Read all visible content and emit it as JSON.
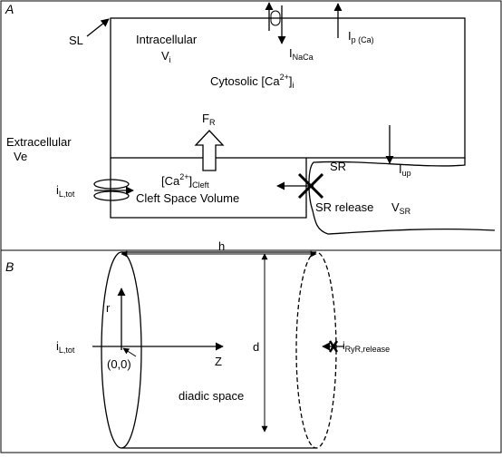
{
  "panel_a": {
    "label": "A",
    "sl": "SL",
    "intracellular": "Intracellular",
    "vi_main": "V",
    "vi_sub": "i",
    "i_naca_main": "I",
    "i_naca_sub": "NaCa",
    "i_pca_main": "I",
    "i_pca_sub": "p (Ca)",
    "cytosolic_main": "Cytosolic [Ca",
    "cytosolic_sup": "2+",
    "cytosolic_close": "]",
    "cytosolic_sub": "i",
    "fr_main": "F",
    "fr_sub": "R",
    "extracellular": "Extracellular",
    "ve": "Ve",
    "cleft_ca_main": "[Ca",
    "cleft_ca_sup": "2+",
    "cleft_ca_close": "]",
    "cleft_ca_sub": "Cleft",
    "cleft_volume": "Cleft Space Volume",
    "il_main": "i",
    "il_sub": "L,tot",
    "sr": "SR",
    "iup_main": "I",
    "iup_sub": "up",
    "sr_release": "SR release",
    "vsr_main": "V",
    "vsr_sub": "SR"
  },
  "panel_b": {
    "label": "B",
    "h": "h",
    "r": "r",
    "il_main": "i",
    "il_sub": "L,tot",
    "origin": "(0,0)",
    "z": "Z",
    "d": "d",
    "iryr_main": "i",
    "iryr_sub": "RyR,release",
    "diadic": "diadic space"
  }
}
